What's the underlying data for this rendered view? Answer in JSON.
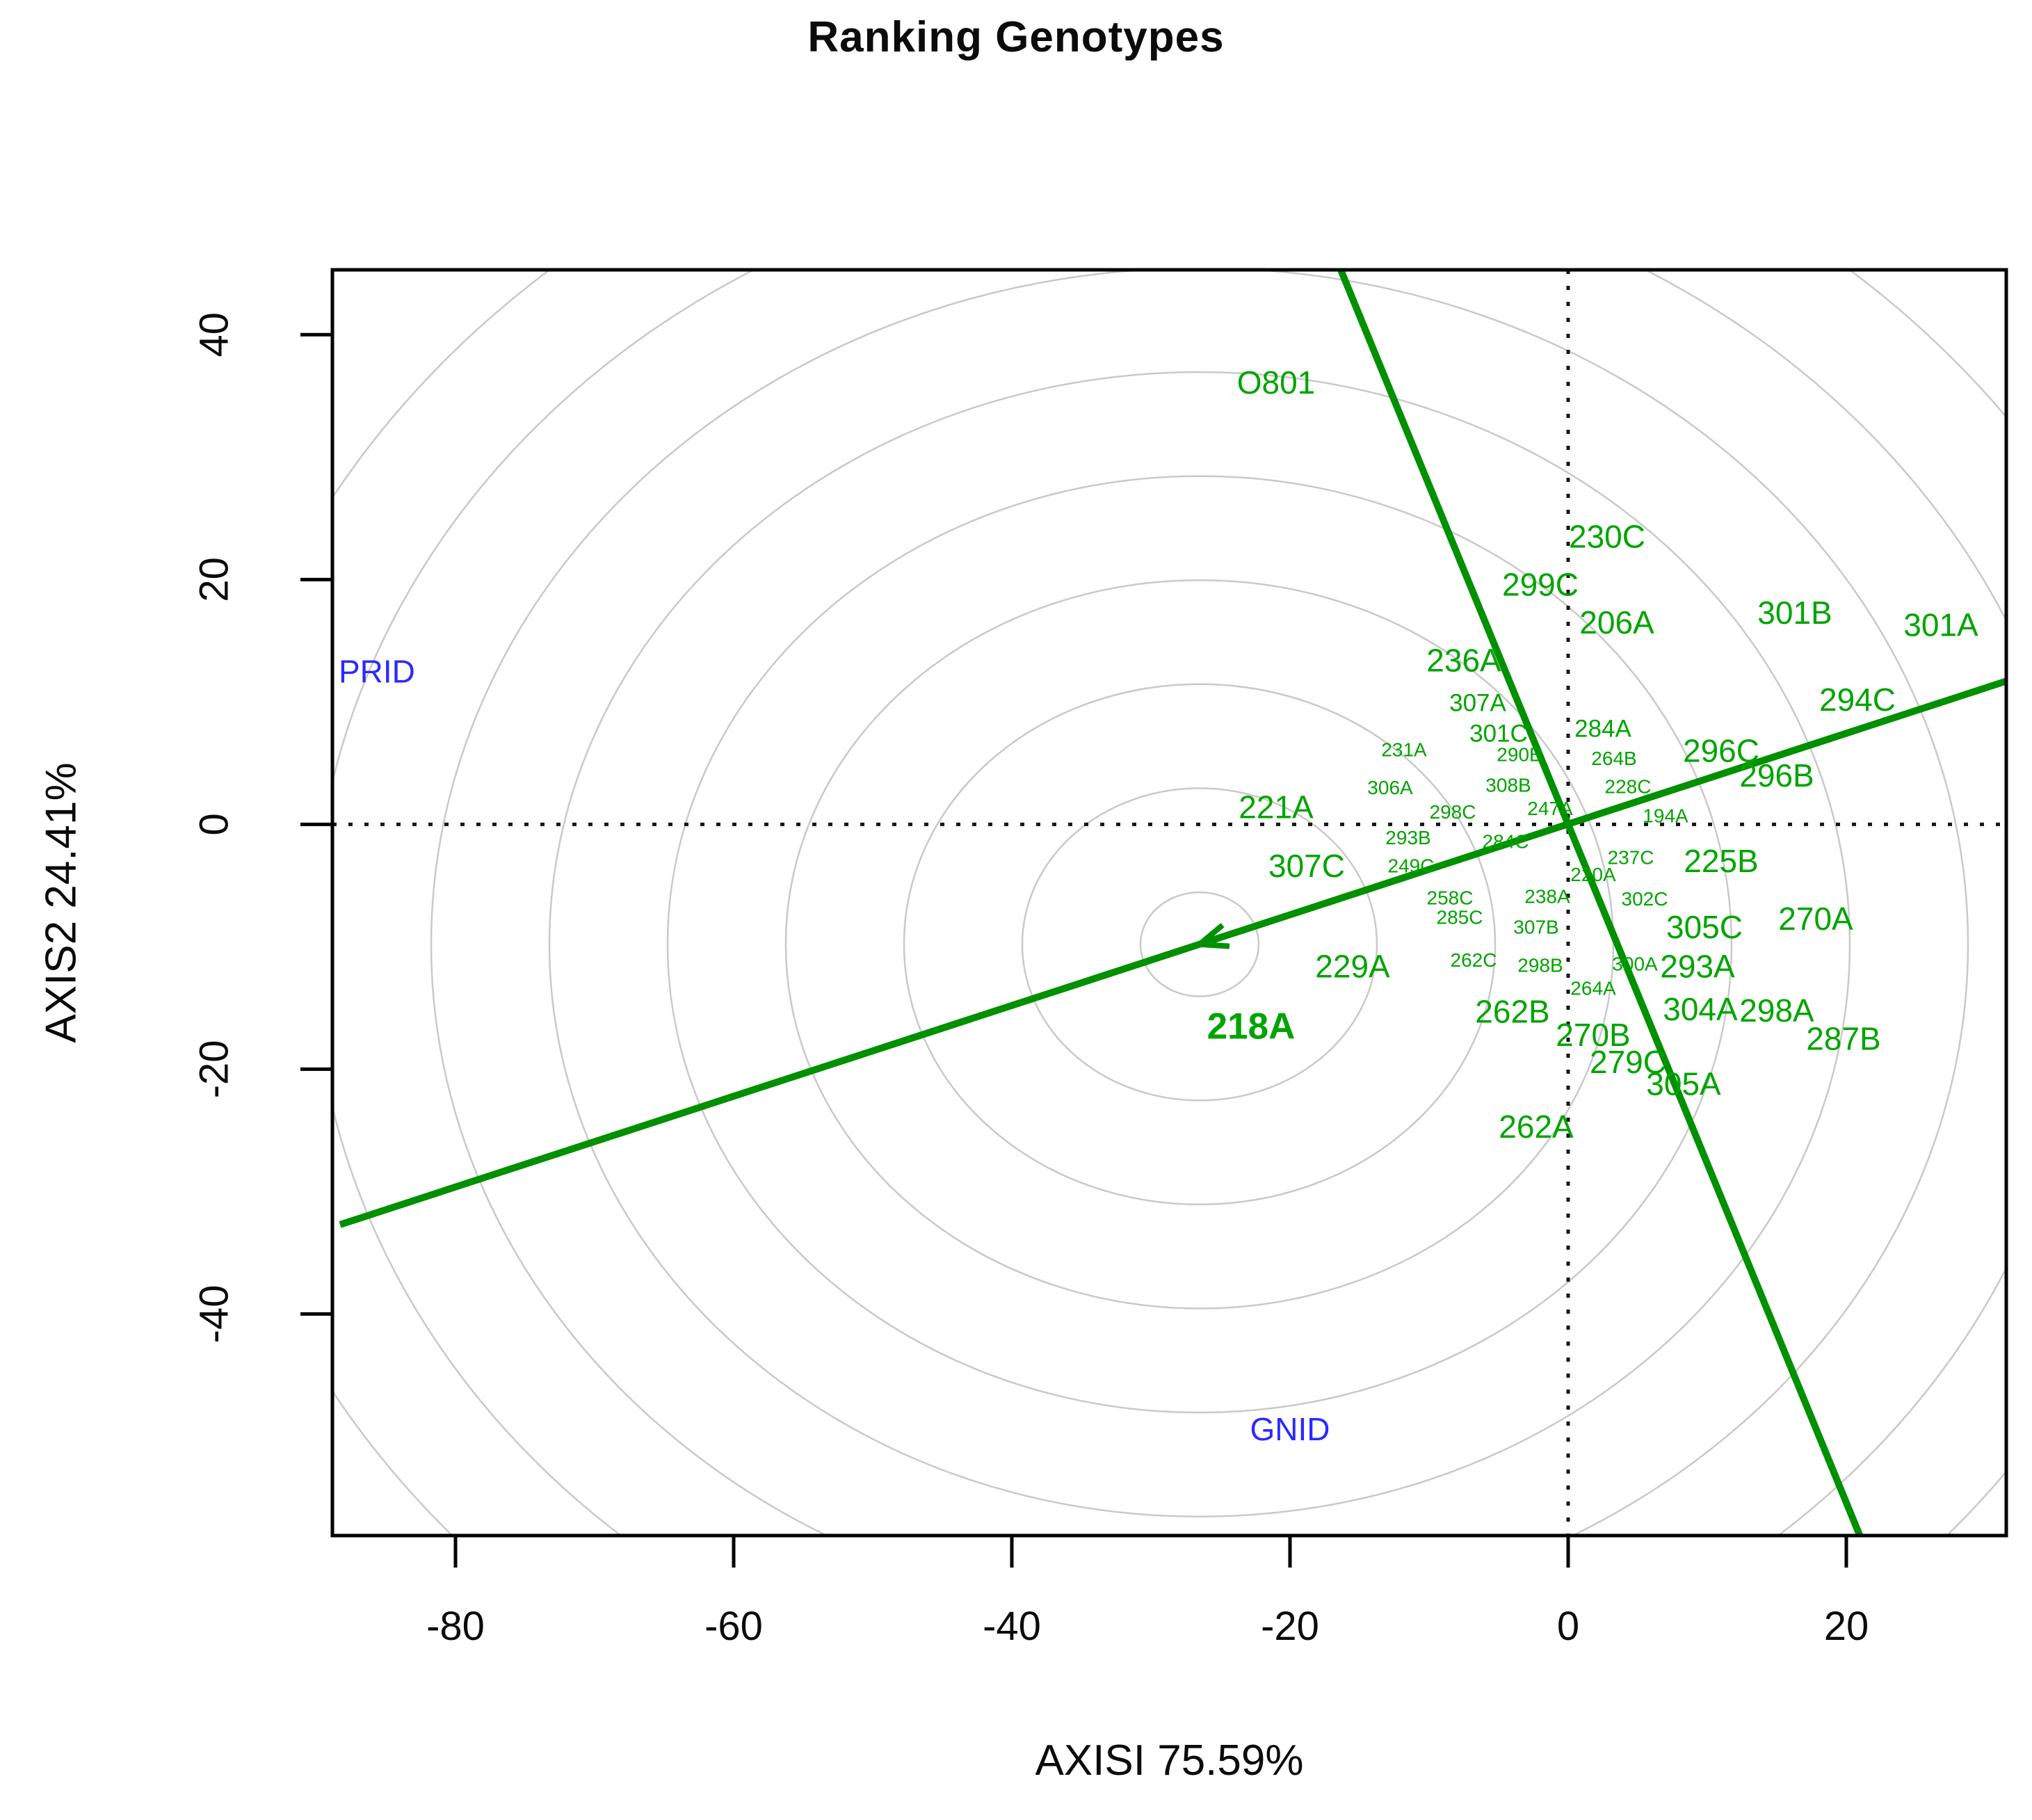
{
  "chart_data": {
    "type": "scatter",
    "title": "Ranking Genotypes",
    "xlabel": "AXISI 75.59%",
    "ylabel": "AXIS2 24.41%",
    "xlim": [
      -88.85,
      31.5
    ],
    "ylim": [
      -58.1,
      45.3
    ],
    "x_ticks": [
      -80,
      -60,
      -40,
      -20,
      0,
      20
    ],
    "y_ticks": [
      40,
      20,
      0,
      -20,
      -40
    ],
    "grid": false,
    "legend": "none",
    "crosshair": {
      "x": 0,
      "y": 0,
      "style": "dotted"
    },
    "colors": {
      "genotype": "#00a400",
      "environment": "#2a2aff",
      "line": "#009000",
      "ring": "#c9c9c9",
      "axis": "#000000"
    },
    "rings": {
      "center": [
        -26.5,
        -9.8
      ],
      "radii": [
        4.25,
        12.75,
        21.25,
        29.75,
        38.25,
        46.75,
        55.25,
        63.75,
        72.25
      ]
    },
    "aec": {
      "abscissa": {
        "from": [
          -88.3,
          -32.7
        ],
        "to": [
          31.5,
          11.7
        ],
        "arrow_at": [
          -26.5,
          -9.8
        ]
      },
      "ordinate": {
        "from": [
          -16.35,
          45.3
        ],
        "to": [
          20.97,
          -58.1
        ]
      }
    },
    "genotypes": [
      {
        "label": "O801",
        "x": -21.0,
        "y": 36.1,
        "size": "lg"
      },
      {
        "label": "230C",
        "x": 2.8,
        "y": 23.5,
        "size": "lg"
      },
      {
        "label": "299C",
        "x": -2.0,
        "y": 19.6,
        "size": "lg"
      },
      {
        "label": "206A",
        "x": 3.5,
        "y": 16.5,
        "size": "lg"
      },
      {
        "label": "301B",
        "x": 16.3,
        "y": 17.3,
        "size": "lg"
      },
      {
        "label": "301A",
        "x": 26.8,
        "y": 16.3,
        "size": "lg"
      },
      {
        "label": "236A",
        "x": -7.5,
        "y": 13.4,
        "size": "lg"
      },
      {
        "label": "294C",
        "x": 20.8,
        "y": 10.2,
        "size": "lg"
      },
      {
        "label": "296C",
        "x": 11.0,
        "y": 6.0,
        "size": "lg"
      },
      {
        "label": "296B",
        "x": 15.0,
        "y": 4.0,
        "size": "lg"
      },
      {
        "label": "307A",
        "x": -6.5,
        "y": 9.9,
        "size": "md"
      },
      {
        "label": "301C",
        "x": -5.0,
        "y": 7.4,
        "size": "md"
      },
      {
        "label": "284A",
        "x": 2.5,
        "y": 7.8,
        "size": "md"
      },
      {
        "label": "231A",
        "x": -11.8,
        "y": 6.1,
        "size": "sm"
      },
      {
        "label": "290B",
        "x": -3.5,
        "y": 5.7,
        "size": "sm"
      },
      {
        "label": "264B",
        "x": 3.3,
        "y": 5.4,
        "size": "sm"
      },
      {
        "label": "306A",
        "x": -12.8,
        "y": 3.0,
        "size": "sm"
      },
      {
        "label": "308B",
        "x": -4.3,
        "y": 3.2,
        "size": "sm"
      },
      {
        "label": "228C",
        "x": 4.3,
        "y": 3.1,
        "size": "sm"
      },
      {
        "label": "221A",
        "x": -21.0,
        "y": 1.4,
        "size": "lg"
      },
      {
        "label": "298C",
        "x": -8.3,
        "y": 1.0,
        "size": "sm"
      },
      {
        "label": "247A",
        "x": -1.3,
        "y": 1.3,
        "size": "sm"
      },
      {
        "label": "194A",
        "x": 7.0,
        "y": 0.7,
        "size": "sm"
      },
      {
        "label": "293B",
        "x": -11.5,
        "y": -1.1,
        "size": "sm"
      },
      {
        "label": "284C",
        "x": -4.5,
        "y": -1.4,
        "size": "sm"
      },
      {
        "label": "307C",
        "x": -18.8,
        "y": -3.4,
        "size": "lg"
      },
      {
        "label": "249C",
        "x": -11.3,
        "y": -3.4,
        "size": "sm"
      },
      {
        "label": "237C",
        "x": 4.5,
        "y": -2.7,
        "size": "sm"
      },
      {
        "label": "225B",
        "x": 11.0,
        "y": -3.0,
        "size": "lg"
      },
      {
        "label": "220A",
        "x": 1.8,
        "y": -4.1,
        "size": "sm"
      },
      {
        "label": "238A",
        "x": -1.5,
        "y": -5.9,
        "size": "sm"
      },
      {
        "label": "302C",
        "x": 5.5,
        "y": -6.1,
        "size": "sm"
      },
      {
        "label": "258C",
        "x": -8.5,
        "y": -6.0,
        "size": "sm"
      },
      {
        "label": "285C",
        "x": -7.8,
        "y": -7.6,
        "size": "sm"
      },
      {
        "label": "307B",
        "x": -2.3,
        "y": -8.4,
        "size": "sm"
      },
      {
        "label": "305C",
        "x": 9.8,
        "y": -8.4,
        "size": "lg"
      },
      {
        "label": "270A",
        "x": 17.8,
        "y": -7.7,
        "size": "lg"
      },
      {
        "label": "229A",
        "x": -15.5,
        "y": -11.6,
        "size": "lg"
      },
      {
        "label": "262C",
        "x": -6.8,
        "y": -11.1,
        "size": "sm"
      },
      {
        "label": "298B",
        "x": -2.0,
        "y": -11.5,
        "size": "sm"
      },
      {
        "label": "300A",
        "x": 4.8,
        "y": -11.4,
        "size": "sm"
      },
      {
        "label": "293A",
        "x": 9.3,
        "y": -11.6,
        "size": "lg"
      },
      {
        "label": "264A",
        "x": 1.8,
        "y": -13.4,
        "size": "sm"
      },
      {
        "label": "262B",
        "x": -4.0,
        "y": -15.3,
        "size": "lg"
      },
      {
        "label": "304A",
        "x": 9.5,
        "y": -15.1,
        "size": "lg"
      },
      {
        "label": "298A",
        "x": 15.0,
        "y": -15.2,
        "size": "lg"
      },
      {
        "label": "270B",
        "x": 1.8,
        "y": -17.2,
        "size": "lg"
      },
      {
        "label": "287B",
        "x": 19.8,
        "y": -17.5,
        "size": "lg"
      },
      {
        "label": "279C",
        "x": 4.3,
        "y": -19.4,
        "size": "lg"
      },
      {
        "label": "218A",
        "x": -22.8,
        "y": -16.5,
        "size": "xl"
      },
      {
        "label": "305A",
        "x": 8.3,
        "y": -21.2,
        "size": "lg"
      },
      {
        "label": "262A",
        "x": -2.3,
        "y": -24.7,
        "size": "lg"
      }
    ],
    "environments": [
      {
        "label": "PRID",
        "x": -88.4,
        "y": 12.5,
        "anchor": "start"
      },
      {
        "label": "GNID",
        "x": -20.0,
        "y": -49.4,
        "anchor": "middle"
      }
    ]
  }
}
